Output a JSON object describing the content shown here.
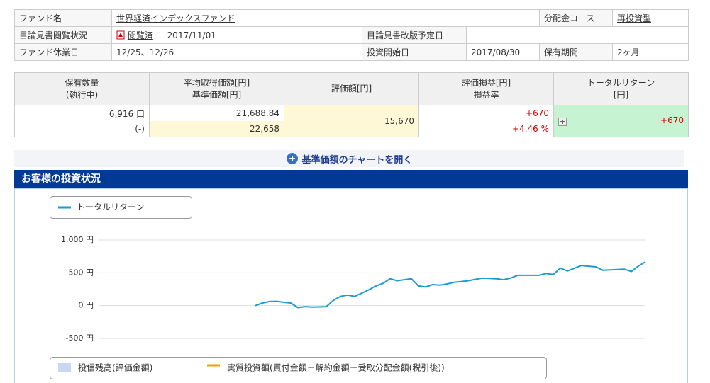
{
  "fund_info": {
    "fund_name_label": "ファンド名",
    "fund_name": "世界経済インデックスファンド",
    "course_label": "分配金コース",
    "course": "再投資型",
    "prospectus_label": "目論見書閲覧状況",
    "prospectus_status": "閲覧済",
    "prospectus_date": "2017/11/01",
    "revision_label": "目論見書改版予定日",
    "revision_date": "－",
    "holiday_label": "ファンド休業日",
    "holidays": "12/25、12/26",
    "start_label": "投資開始日",
    "start_date": "2017/08/30",
    "period_label": "保有期間",
    "period": "2ヶ月"
  },
  "holdings": {
    "headers": [
      [
        "保有数量",
        "(執行中)"
      ],
      [
        "平均取得価額[円]",
        "基準価額[円]"
      ],
      [
        "評価額[円]"
      ],
      [
        "評価損益[円]",
        "損益率"
      ],
      [
        "トータルリターン",
        "[円]"
      ]
    ],
    "quantity": "6,916 口",
    "pending": "(-)",
    "avg_cost": "21,688.84",
    "nav": "22,658",
    "valuation": "15,670",
    "pl": "+670",
    "pl_rate": "+4.46 %",
    "total_return": "+670"
  },
  "chart_link": "基準価額のチャートを開く",
  "section_title": "お客様の投資状況",
  "chart_data": {
    "type": "line",
    "ylim": [
      -500,
      1000
    ],
    "yticks": [
      {
        "value": 1000,
        "label": "1,000 円"
      },
      {
        "value": 500,
        "label": "500 円"
      },
      {
        "value": 0,
        "label": "0 円"
      },
      {
        "value": -500,
        "label": "-500 円"
      }
    ],
    "grid": true,
    "series": [
      {
        "name": "トータルリターン",
        "color": "#1a9bd1",
        "values": [
          null,
          null,
          null,
          null,
          null,
          null,
          null,
          null,
          null,
          null,
          null,
          null,
          null,
          null,
          null,
          null,
          null,
          null,
          null,
          null,
          null,
          null,
          0,
          40,
          62,
          65,
          50,
          40,
          -30,
          -15,
          -22,
          -20,
          -15,
          80,
          140,
          160,
          140,
          190,
          240,
          300,
          340,
          410,
          380,
          395,
          410,
          300,
          285,
          320,
          312,
          330,
          355,
          365,
          380,
          400,
          419,
          415,
          409,
          395,
          420,
          462,
          462,
          462,
          462,
          490,
          473,
          570,
          527,
          570,
          610,
          600,
          590,
          538,
          545,
          550,
          555,
          520,
          602,
          667
        ]
      },
      {
        "name": "投信残高(評価金額)",
        "color": "#c6d9f1",
        "values": [
          null,
          null,
          null,
          null,
          null,
          null,
          null,
          null,
          null,
          null,
          null,
          null,
          null,
          null,
          null,
          null,
          null,
          null,
          null,
          null,
          null,
          null,
          null,
          null,
          null,
          null,
          null,
          null,
          null,
          null,
          null,
          null,
          null,
          null,
          null,
          null,
          null,
          null,
          null,
          null,
          null,
          null,
          null,
          null,
          null,
          null,
          null,
          null,
          null,
          null,
          null,
          null,
          null,
          null,
          null,
          null,
          null,
          null,
          null,
          null,
          null,
          null,
          null,
          null,
          null,
          null,
          null,
          null,
          null,
          null,
          null,
          null,
          null,
          null,
          null,
          null,
          null,
          null
        ]
      },
      {
        "name": "実質投資額(買付金額－解約金額－受取分配金額(税引後))",
        "color": "#f5a000",
        "values": [
          null,
          null,
          null,
          null,
          null,
          null,
          null,
          null,
          null,
          null,
          null,
          null,
          null,
          null,
          null,
          null,
          null,
          null,
          null,
          null,
          null,
          null,
          null,
          null,
          null,
          null,
          null,
          null,
          null,
          null,
          null,
          null,
          null,
          null,
          null,
          null,
          null,
          null,
          null,
          null,
          null,
          null,
          null,
          null,
          null,
          null,
          null,
          null,
          null,
          null,
          null,
          null,
          null,
          null,
          null,
          null,
          null,
          null,
          null,
          null,
          null,
          null,
          null,
          null,
          null,
          null,
          null,
          null,
          null,
          null,
          null,
          null,
          null,
          null,
          null,
          null,
          null,
          null
        ]
      }
    ]
  }
}
